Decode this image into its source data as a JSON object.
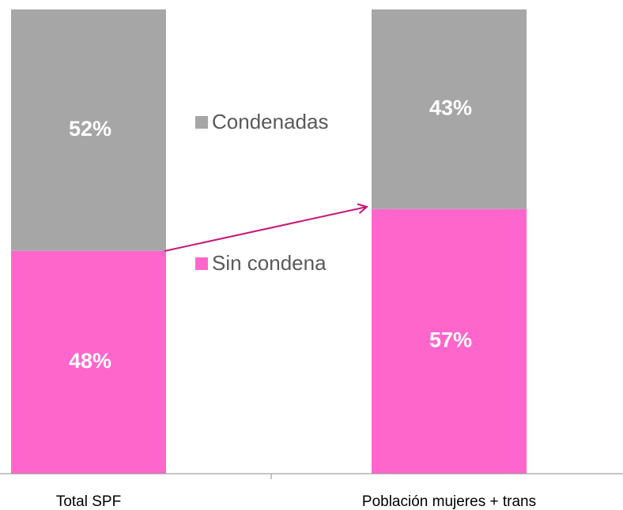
{
  "chart_data": {
    "type": "stacked_bar",
    "categories": [
      "Total SPF",
      "Población mujeres + trans"
    ],
    "series": [
      {
        "name": "Sin condena",
        "color": "#ff66cc",
        "values": [
          48,
          57
        ],
        "value_labels": [
          "48%",
          "57%"
        ]
      },
      {
        "name": "Condenadas",
        "color": "#a6a6a6",
        "values": [
          52,
          43
        ],
        "value_labels": [
          "52%",
          "43%"
        ]
      }
    ],
    "ylim": [
      0,
      100
    ]
  }
}
